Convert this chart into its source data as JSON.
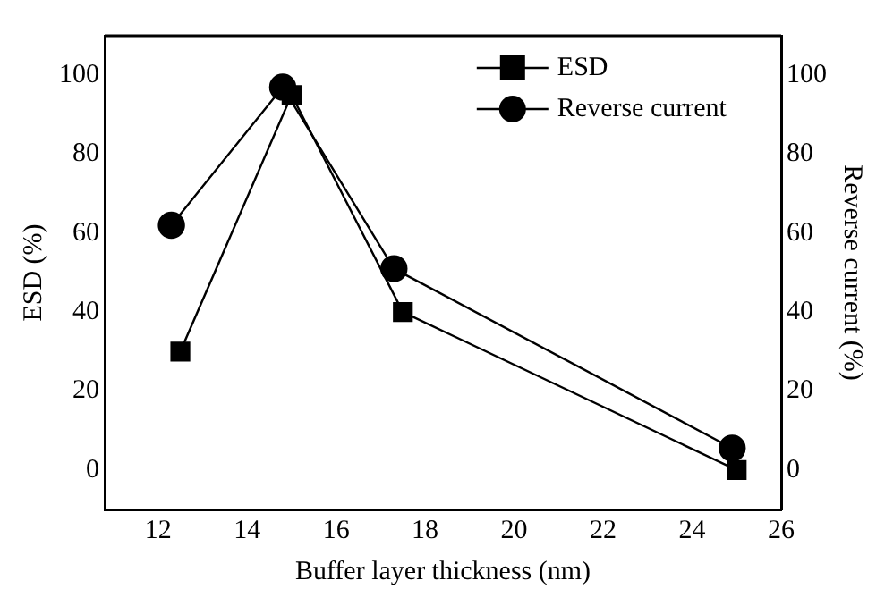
{
  "chart_data": {
    "type": "line",
    "xlabel": "Buffer layer thickness (nm)",
    "ylabel": "ESD (%)",
    "y2label": "Reverse current (%)",
    "xlim": [
      10.8,
      26
    ],
    "xticks": [
      12,
      14,
      16,
      18,
      20,
      22,
      24,
      26
    ],
    "ylim": [
      -10,
      110
    ],
    "yticks": [
      0,
      20,
      40,
      60,
      80,
      100
    ],
    "y2lim": [
      -10,
      110
    ],
    "y2ticks": [
      0,
      20,
      40,
      60,
      80,
      100
    ],
    "legend": "top right",
    "grid": false,
    "series": [
      {
        "name": "ESD",
        "color": "#000000",
        "marker": "square",
        "x": [
          12.5,
          15,
          17.5,
          25
        ],
        "values": [
          30,
          95,
          40,
          0
        ]
      },
      {
        "name": "Reverse current",
        "color": "#000000",
        "marker": "circle",
        "x": [
          12.3,
          14.8,
          17.3,
          24.9
        ],
        "values": [
          62,
          97,
          51,
          5.5
        ]
      }
    ]
  }
}
